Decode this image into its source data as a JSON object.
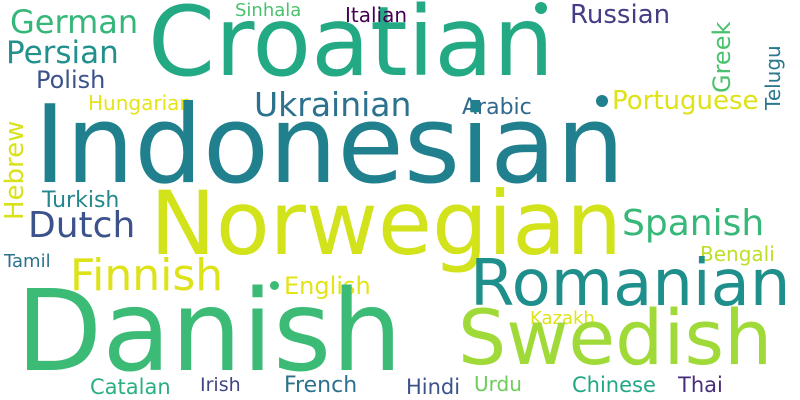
{
  "words": {
    "croatian": {
      "text": "Croatian",
      "color": "#23a983"
    },
    "indonesian": {
      "text": "Indonesian",
      "color": "#21808d"
    },
    "danish": {
      "text": "Danish",
      "color": "#3bbb75"
    },
    "norwegian": {
      "text": "Norwegian",
      "color": "#d2e21b"
    },
    "swedish": {
      "text": "Swedish",
      "color": "#a0da39"
    },
    "romanian": {
      "text": "Romanian",
      "color": "#1f8f8b"
    },
    "german": {
      "text": "German",
      "color": "#35b779"
    },
    "persian": {
      "text": "Persian",
      "color": "#22908c"
    },
    "polish": {
      "text": "Polish",
      "color": "#3b528b"
    },
    "russian": {
      "text": "Russian",
      "color": "#433e85"
    },
    "sinhala": {
      "text": "Sinhala",
      "color": "#4ac16d"
    },
    "italian": {
      "text": "Italian",
      "color": "#440154"
    },
    "greek": {
      "text": "Greek",
      "color": "#4ac16d"
    },
    "telugu": {
      "text": "Telugu",
      "color": "#2a788e"
    },
    "hungarian": {
      "text": "Hungarian",
      "color": "#e5e419"
    },
    "ukrainian": {
      "text": "Ukrainian",
      "color": "#2c728e"
    },
    "arabic": {
      "text": "Arabic",
      "color": "#31688e"
    },
    "portuguese": {
      "text": "Portuguese",
      "color": "#dde318"
    },
    "hebrew": {
      "text": "Hebrew",
      "color": "#d8e219"
    },
    "turkish": {
      "text": "Turkish",
      "color": "#24878e"
    },
    "dutch": {
      "text": "Dutch",
      "color": "#3b528b"
    },
    "spanish": {
      "text": "Spanish",
      "color": "#37b878"
    },
    "bengali": {
      "text": "Bengali",
      "color": "#bddf26"
    },
    "tamil": {
      "text": "Tamil",
      "color": "#2c728e"
    },
    "finnish": {
      "text": "Finnish",
      "color": "#dde318"
    },
    "english": {
      "text": "English",
      "color": "#e2e418"
    },
    "kazakh": {
      "text": "Kazakh",
      "color": "#dce319"
    },
    "catalan": {
      "text": "Catalan",
      "color": "#2ab07f"
    },
    "irish": {
      "text": "Irish",
      "color": "#414487"
    },
    "french": {
      "text": "French",
      "color": "#2c728e"
    },
    "hindi": {
      "text": "Hindi",
      "color": "#3b528b"
    },
    "urdu": {
      "text": "Urdu",
      "color": "#6ccd5a"
    },
    "chinese": {
      "text": "Chinese",
      "color": "#22a785"
    },
    "thai": {
      "text": "Thai",
      "color": "#472d7b"
    }
  }
}
